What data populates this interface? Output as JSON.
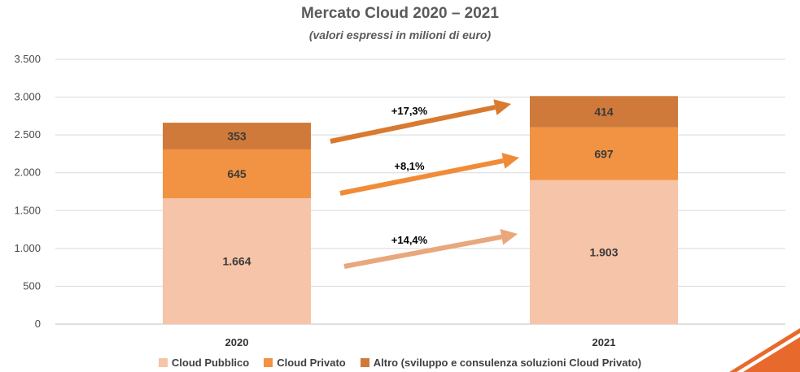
{
  "chart_data": {
    "type": "bar",
    "stacked": true,
    "title": "Mercato Cloud 2020 – 2021",
    "subtitle": "(valori espressi in milioni di euro)",
    "categories": [
      "2020",
      "2021"
    ],
    "series": [
      {
        "name": "Cloud Pubblico",
        "values": [
          1664,
          1903
        ],
        "labels": [
          "1.664",
          "1.903"
        ],
        "color": "#f6c4a8"
      },
      {
        "name": "Cloud Privato",
        "values": [
          645,
          697
        ],
        "labels": [
          "645",
          "697"
        ],
        "color": "#f19343"
      },
      {
        "name": "Altro (sviluppo e consulenza soluzioni Cloud Privato)",
        "values": [
          353,
          414
        ],
        "labels": [
          "353",
          "414"
        ],
        "color": "#cf7a3b"
      }
    ],
    "growth": [
      {
        "series": "Cloud Pubblico",
        "label": "+14,4%",
        "color": "#e9a77c"
      },
      {
        "series": "Cloud Privato",
        "label": "+8,1%",
        "color": "#f08c38"
      },
      {
        "series": "Altro",
        "label": "+17,3%",
        "color": "#d87a30"
      }
    ],
    "ylim": [
      0,
      3500
    ],
    "yticks": [
      0,
      500,
      1000,
      1500,
      2000,
      2500,
      3000,
      3500
    ],
    "ytick_labels": [
      "0",
      "500",
      "1.000",
      "1.500",
      "2.000",
      "2.500",
      "3.000",
      "3.500"
    ],
    "grid": true,
    "legend_position": "bottom"
  },
  "decoration": {
    "corner_color": "#e8692c"
  }
}
